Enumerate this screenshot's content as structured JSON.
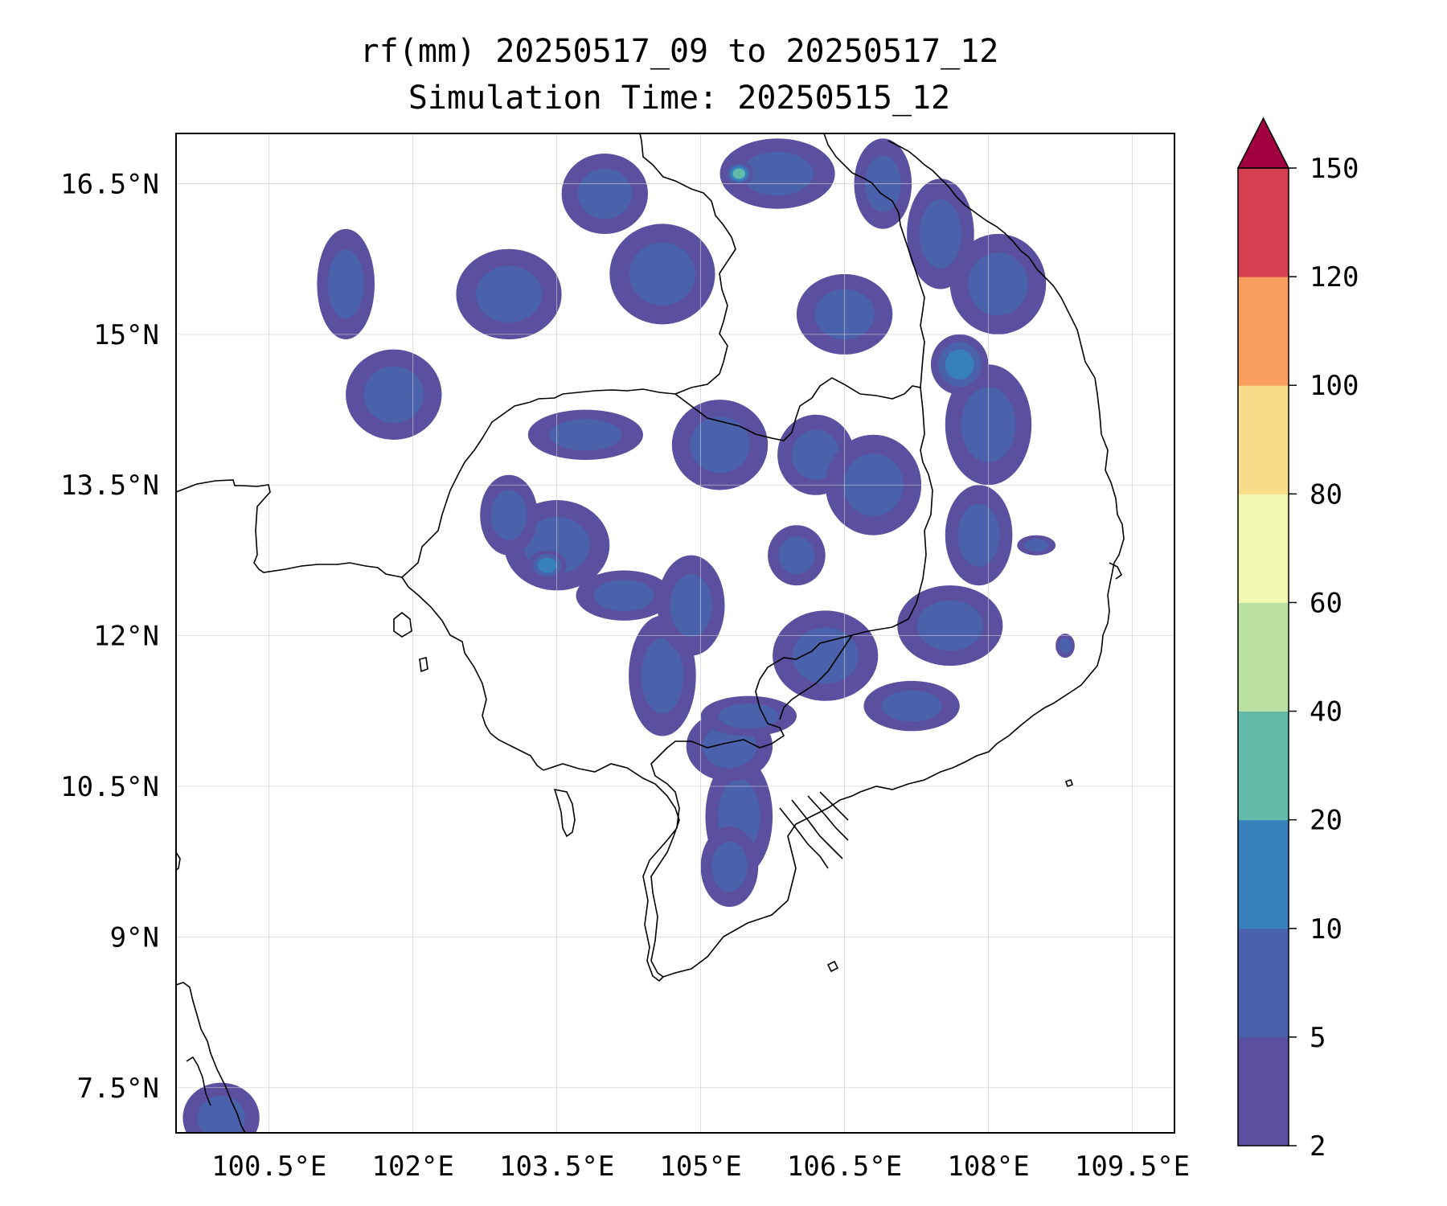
{
  "title": "rf(mm) 20250517_09 to 20250517_12",
  "subtitle": "Simulation Time: 20250515_12",
  "chart_data": {
    "type": "heatmap",
    "title": "rf(mm) 20250517_09 to 20250517_12",
    "subtitle": "Simulation Time: 20250515_12",
    "xlim": [
      99.53,
      109.94
    ],
    "ylim": [
      7.05,
      17.0
    ],
    "x_ticks": [
      100.5,
      102,
      103.5,
      105,
      106.5,
      108,
      109.5
    ],
    "x_tick_labels": [
      "100.5°E",
      "102°E",
      "103.5°E",
      "105°E",
      "106.5°E",
      "108°E",
      "109.5°E"
    ],
    "y_ticks": [
      16.5,
      15,
      13.5,
      12,
      10.5,
      9,
      7.5
    ],
    "y_tick_labels": [
      "16.5°N",
      "15°N",
      "13.5°N",
      "12°N",
      "10.5°N",
      "9°N",
      "7.5°N"
    ],
    "grid": true,
    "colorbar": {
      "position": "right",
      "levels": [
        2,
        5,
        10,
        20,
        40,
        60,
        80,
        100,
        120,
        150
      ],
      "labels": [
        "2",
        "5",
        "10",
        "20",
        "40",
        "60",
        "80",
        "100",
        "120",
        "150"
      ],
      "colors": [
        "#5b4fa0",
        "#4a62ac",
        "#3780bb",
        "#62baa9",
        "#bae1a1",
        "#f2f8b0",
        "#f9dc8a",
        "#f99e5c",
        "#d63f4f",
        "#a0003f"
      ],
      "extend": "max"
    },
    "rain_cells": [
      {
        "lon": 103.5,
        "lat": 12.9,
        "rx": 0.55,
        "ry": 0.45,
        "value": 8
      },
      {
        "lon": 103.4,
        "lat": 12.7,
        "rx": 0.2,
        "ry": 0.15,
        "value": 15
      },
      {
        "lon": 103.0,
        "lat": 13.2,
        "rx": 0.3,
        "ry": 0.4,
        "value": 5
      },
      {
        "lon": 104.2,
        "lat": 12.4,
        "rx": 0.5,
        "ry": 0.25,
        "value": 6
      },
      {
        "lon": 103.8,
        "lat": 14.0,
        "rx": 0.6,
        "ry": 0.25,
        "value": 5
      },
      {
        "lon": 104.6,
        "lat": 11.6,
        "rx": 0.35,
        "ry": 0.6,
        "value": 6
      },
      {
        "lon": 105.4,
        "lat": 10.2,
        "rx": 0.35,
        "ry": 0.6,
        "value": 8
      },
      {
        "lon": 105.3,
        "lat": 9.7,
        "rx": 0.3,
        "ry": 0.4,
        "value": 6
      },
      {
        "lon": 105.3,
        "lat": 10.9,
        "rx": 0.45,
        "ry": 0.35,
        "value": 7
      },
      {
        "lon": 105.5,
        "lat": 11.2,
        "rx": 0.5,
        "ry": 0.2,
        "value": 5
      },
      {
        "lon": 106.3,
        "lat": 11.8,
        "rx": 0.55,
        "ry": 0.45,
        "value": 6
      },
      {
        "lon": 107.2,
        "lat": 11.3,
        "rx": 0.5,
        "ry": 0.25,
        "value": 6
      },
      {
        "lon": 107.6,
        "lat": 12.1,
        "rx": 0.55,
        "ry": 0.4,
        "value": 7
      },
      {
        "lon": 107.9,
        "lat": 13.0,
        "rx": 0.35,
        "ry": 0.5,
        "value": 6
      },
      {
        "lon": 108.0,
        "lat": 14.1,
        "rx": 0.45,
        "ry": 0.6,
        "value": 8
      },
      {
        "lon": 107.7,
        "lat": 14.7,
        "rx": 0.3,
        "ry": 0.3,
        "value": 12
      },
      {
        "lon": 108.1,
        "lat": 15.5,
        "rx": 0.5,
        "ry": 0.5,
        "value": 7
      },
      {
        "lon": 107.5,
        "lat": 16.0,
        "rx": 0.35,
        "ry": 0.55,
        "value": 6
      },
      {
        "lon": 106.9,
        "lat": 16.5,
        "rx": 0.3,
        "ry": 0.45,
        "value": 6
      },
      {
        "lon": 106.5,
        "lat": 15.2,
        "rx": 0.5,
        "ry": 0.4,
        "value": 5
      },
      {
        "lon": 105.8,
        "lat": 16.6,
        "rx": 0.6,
        "ry": 0.35,
        "value": 6
      },
      {
        "lon": 105.4,
        "lat": 16.6,
        "rx": 0.15,
        "ry": 0.12,
        "value": 20
      },
      {
        "lon": 104.6,
        "lat": 15.6,
        "rx": 0.55,
        "ry": 0.5,
        "value": 5
      },
      {
        "lon": 104.0,
        "lat": 16.4,
        "rx": 0.45,
        "ry": 0.4,
        "value": 5
      },
      {
        "lon": 103.0,
        "lat": 15.4,
        "rx": 0.55,
        "ry": 0.45,
        "value": 5
      },
      {
        "lon": 101.8,
        "lat": 14.4,
        "rx": 0.5,
        "ry": 0.45,
        "value": 5
      },
      {
        "lon": 101.3,
        "lat": 15.5,
        "rx": 0.3,
        "ry": 0.55,
        "value": 5
      },
      {
        "lon": 105.2,
        "lat": 13.9,
        "rx": 0.5,
        "ry": 0.45,
        "value": 5
      },
      {
        "lon": 106.2,
        "lat": 13.8,
        "rx": 0.4,
        "ry": 0.4,
        "value": 5
      },
      {
        "lon": 106.8,
        "lat": 13.5,
        "rx": 0.5,
        "ry": 0.5,
        "value": 5
      },
      {
        "lon": 104.9,
        "lat": 12.3,
        "rx": 0.35,
        "ry": 0.5,
        "value": 5
      },
      {
        "lon": 106.0,
        "lat": 12.8,
        "rx": 0.3,
        "ry": 0.3,
        "value": 5
      },
      {
        "lon": 100.0,
        "lat": 7.2,
        "rx": 0.4,
        "ry": 0.35,
        "value": 5
      },
      {
        "lon": 108.5,
        "lat": 12.9,
        "rx": 0.2,
        "ry": 0.1,
        "value": 5
      },
      {
        "lon": 108.8,
        "lat": 11.9,
        "rx": 0.1,
        "ry": 0.12,
        "value": 5
      }
    ]
  }
}
